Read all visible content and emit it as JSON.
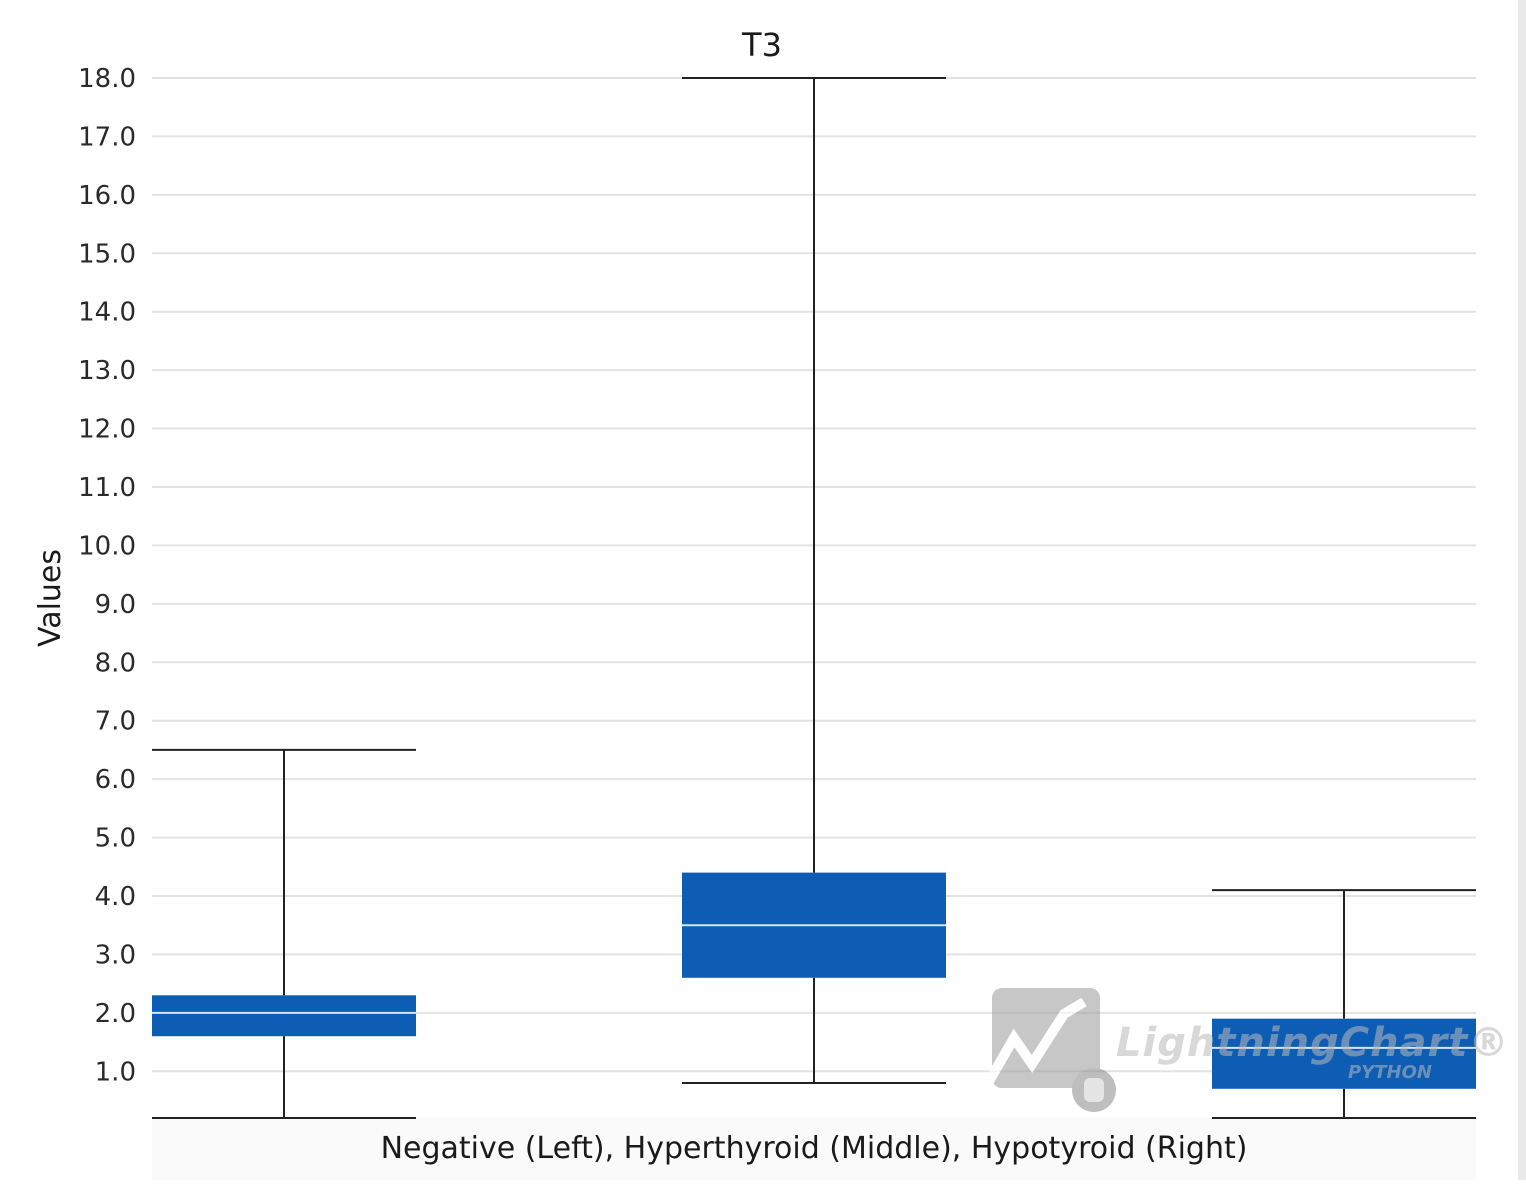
{
  "chart_data": {
    "type": "box",
    "title": "T3",
    "xlabel": "Negative (Left), Hyperthyroid (Middle), Hypotyroid (Right)",
    "ylabel": "Values",
    "ylim": [
      0.2,
      18.0
    ],
    "yticks": [
      "1.0",
      "2.0",
      "3.0",
      "4.0",
      "5.0",
      "6.0",
      "7.0",
      "8.0",
      "9.0",
      "10.0",
      "11.0",
      "12.0",
      "13.0",
      "14.0",
      "15.0",
      "16.0",
      "17.0",
      "18.0"
    ],
    "grid": true,
    "series": [
      {
        "min": 0.2,
        "q1": 1.6,
        "median": 2.0,
        "q3": 2.3,
        "max": 6.5
      },
      {
        "min": 0.8,
        "q1": 2.6,
        "median": 3.5,
        "q3": 4.4,
        "max": 18.0
      },
      {
        "min": 0.2,
        "q1": 0.7,
        "median": 1.4,
        "q3": 1.9,
        "max": 4.1
      }
    ],
    "colors": {
      "box": "#0d5db5",
      "median": "#d8e6f5",
      "whisker": "#222222",
      "grid": "#e3e3e3"
    }
  },
  "watermark": {
    "brand": "LightningChart®",
    "sub": "PYTHON",
    "icon": "lightningchart-logo-icon"
  }
}
